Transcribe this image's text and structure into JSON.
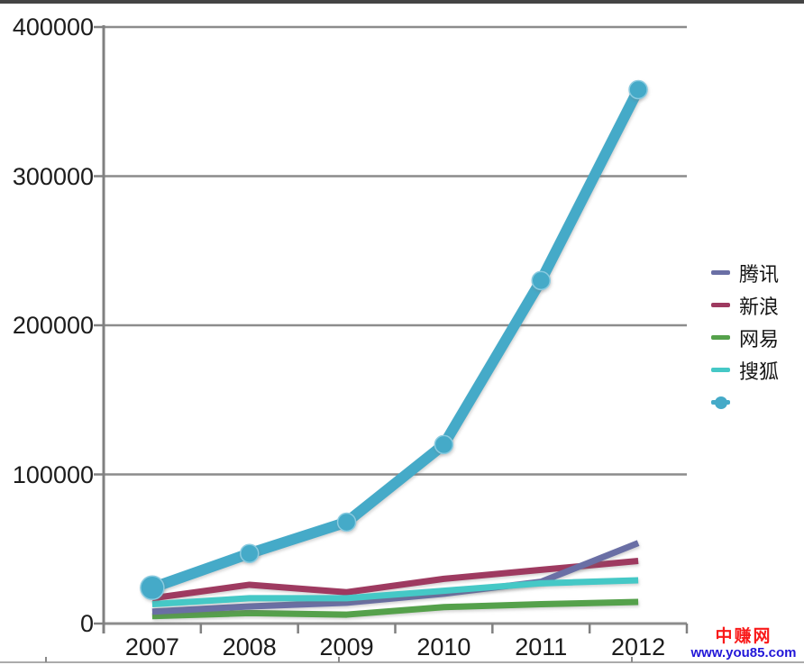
{
  "chart_data": {
    "type": "line",
    "title": "",
    "xlabel": "",
    "ylabel": "",
    "categories": [
      "2007",
      "2008",
      "2009",
      "2010",
      "2011",
      "2012"
    ],
    "series": [
      {
        "name": "腾讯",
        "color": "#6A6FA5",
        "style": "thin",
        "values": [
          8000,
          11500,
          14000,
          20000,
          28000,
          54000
        ]
      },
      {
        "name": "新浪",
        "color": "#9E3A60",
        "style": "thin",
        "values": [
          17000,
          26000,
          21000,
          30000,
          36000,
          42000
        ]
      },
      {
        "name": "网易",
        "color": "#55A14B",
        "style": "thin",
        "values": [
          5000,
          7000,
          6000,
          11000,
          13000,
          14500
        ]
      },
      {
        "name": "搜狐",
        "color": "#45C8C6",
        "style": "thin",
        "values": [
          13000,
          17000,
          17000,
          22000,
          27000,
          29000
        ]
      },
      {
        "name": "",
        "color": "#45AAC8",
        "style": "thick-marker",
        "values": [
          24000,
          47000,
          68000,
          120000,
          230000,
          358000
        ]
      }
    ],
    "ylim": [
      0,
      400000
    ],
    "yticks": [
      0,
      100000,
      200000,
      300000,
      400000
    ],
    "grid": true,
    "legend_position": "right"
  },
  "watermark": {
    "site_name": "中赚网",
    "site_url": "www.you85.com",
    "name_color": "#F91A1A",
    "url_color": "#2217D8"
  },
  "colors": {
    "axis": "#808080",
    "grid": "#8C8C8C",
    "tick_text": "#1c1c1c"
  }
}
